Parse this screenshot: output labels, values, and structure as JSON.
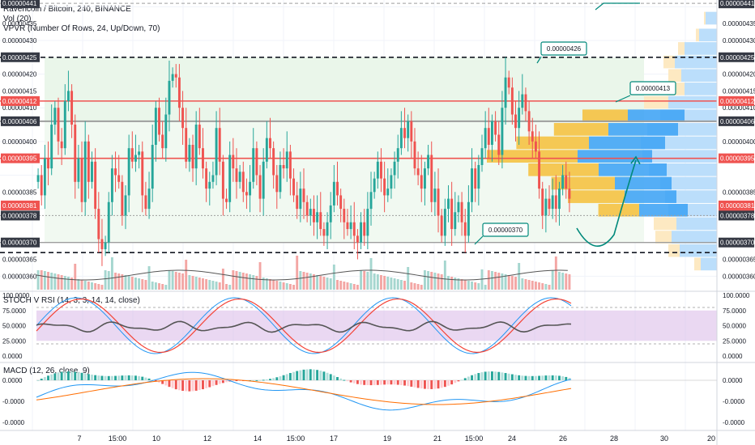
{
  "header": {
    "symbol": "Ravencoin / Bitcoin, 240, BINANCE",
    "vol": "Vol (20)",
    "vpvr": "VPVR (Number Of Rows, 24, Up/Down, 70)",
    "stoch": "STOCH V RSI (14, 3, 3, 14, 14, close)",
    "macd": "MACD (12, 26, close, 9)"
  },
  "colors": {
    "up": "#26a69a",
    "down": "#ef5350",
    "support_red": "#ef5350",
    "level_gray": "#9e9e9e",
    "zone_green": "#e8f5e9",
    "vpvr_up": "#42a5f5",
    "vpvr_down": "#f5c242",
    "stoch_band": "#d9b8e8"
  },
  "price_axis": {
    "ticks": [
      "0.00000435",
      "0.00000430",
      "0.00000420",
      "0.00000415",
      "0.00000410",
      "0.00000400",
      "0.00000385",
      "0.00000365",
      "0.00000360"
    ],
    "tagged": [
      {
        "value": "0.00000441",
        "kind": "dark"
      },
      {
        "value": "0.00000425",
        "kind": "dark"
      },
      {
        "value": "0.00000412",
        "kind": "red"
      },
      {
        "value": "0.00000406",
        "kind": "dark"
      },
      {
        "value": "0.00000395",
        "kind": "red"
      },
      {
        "value": "0.00000381",
        "kind": "red"
      },
      {
        "value": "43:22",
        "kind": "red"
      },
      {
        "value": "0.00000378",
        "kind": "dark"
      },
      {
        "value": "0.00000370",
        "kind": "dark"
      }
    ]
  },
  "stoch_axis": [
    "100.0000",
    "75.0000",
    "50.0000",
    "25.0000",
    "0.0000"
  ],
  "macd_axis": [
    "0.0000",
    "-0.0000",
    "-0.0000"
  ],
  "time_axis": [
    "7",
    "15:00",
    "10",
    "12",
    "14",
    "15:00",
    "17",
    "19",
    "21",
    "15:00",
    "24",
    "26",
    "28",
    "30",
    "20"
  ],
  "callouts": [
    "0.00000426",
    "0.00000413",
    "0.00000370"
  ],
  "chart_data": {
    "type": "candlestick",
    "title": "Ravencoin / Bitcoin, 240, BINANCE",
    "ylim": [
      3.56e-06,
      4.42e-06
    ],
    "levels": [
      4.41e-06,
      4.25e-06,
      4.12e-06,
      4.06e-06,
      3.95e-06,
      3.78e-06,
      3.7e-06
    ],
    "series": [
      {
        "name": "RVN/BTC",
        "close": [
          390,
          384,
          395,
          392,
          405,
          410,
          400,
          398,
          412,
          415,
          405,
          388,
          395,
          382,
          400,
          388,
          394,
          380,
          371,
          368,
          370,
          382,
          392,
          390,
          388,
          378,
          384,
          398,
          394,
          396,
          397,
          384,
          380,
          386,
          399,
          410,
          402,
          398,
          408,
          418,
          420,
          419,
          410,
          404,
          394,
          399,
          392,
          405,
          398,
          392,
          386,
          388,
          390,
          404,
          394,
          383,
          382,
          396,
          392,
          388,
          391,
          385,
          384,
          388,
          398,
          390,
          383,
          394,
          401,
          398,
          390,
          385,
          393,
          392,
          397,
          389,
          384,
          380,
          386,
          382,
          378,
          380,
          376,
          379,
          374,
          372,
          376,
          381,
          388,
          384,
          380,
          376,
          374,
          376,
          372,
          370,
          376,
          372,
          380,
          385,
          389,
          394,
          389,
          384,
          386,
          390,
          394,
          398,
          404,
          401,
          406,
          400,
          392,
          390,
          386,
          392,
          396,
          382,
          386,
          378,
          372,
          380,
          383,
          374,
          379,
          382,
          376,
          372,
          382,
          392,
          386,
          393,
          398,
          404,
          399,
          406,
          402,
          396,
          410,
          419,
          416,
          408,
          404,
          410,
          414,
          409,
          403,
          400,
          397,
          386,
          378,
          383,
          380,
          384,
          380,
          386,
          390,
          386,
          383
        ]
      }
    ],
    "volume_panel": {
      "name": "Vol (20)"
    },
    "stoch_rsi": {
      "name": "STOCH V RSI (14, 3, 3, 14, 14, close)",
      "ylim": [
        0,
        100
      ],
      "band": [
        25,
        75
      ]
    },
    "macd": {
      "name": "MACD (12, 26, close, 9)"
    }
  }
}
